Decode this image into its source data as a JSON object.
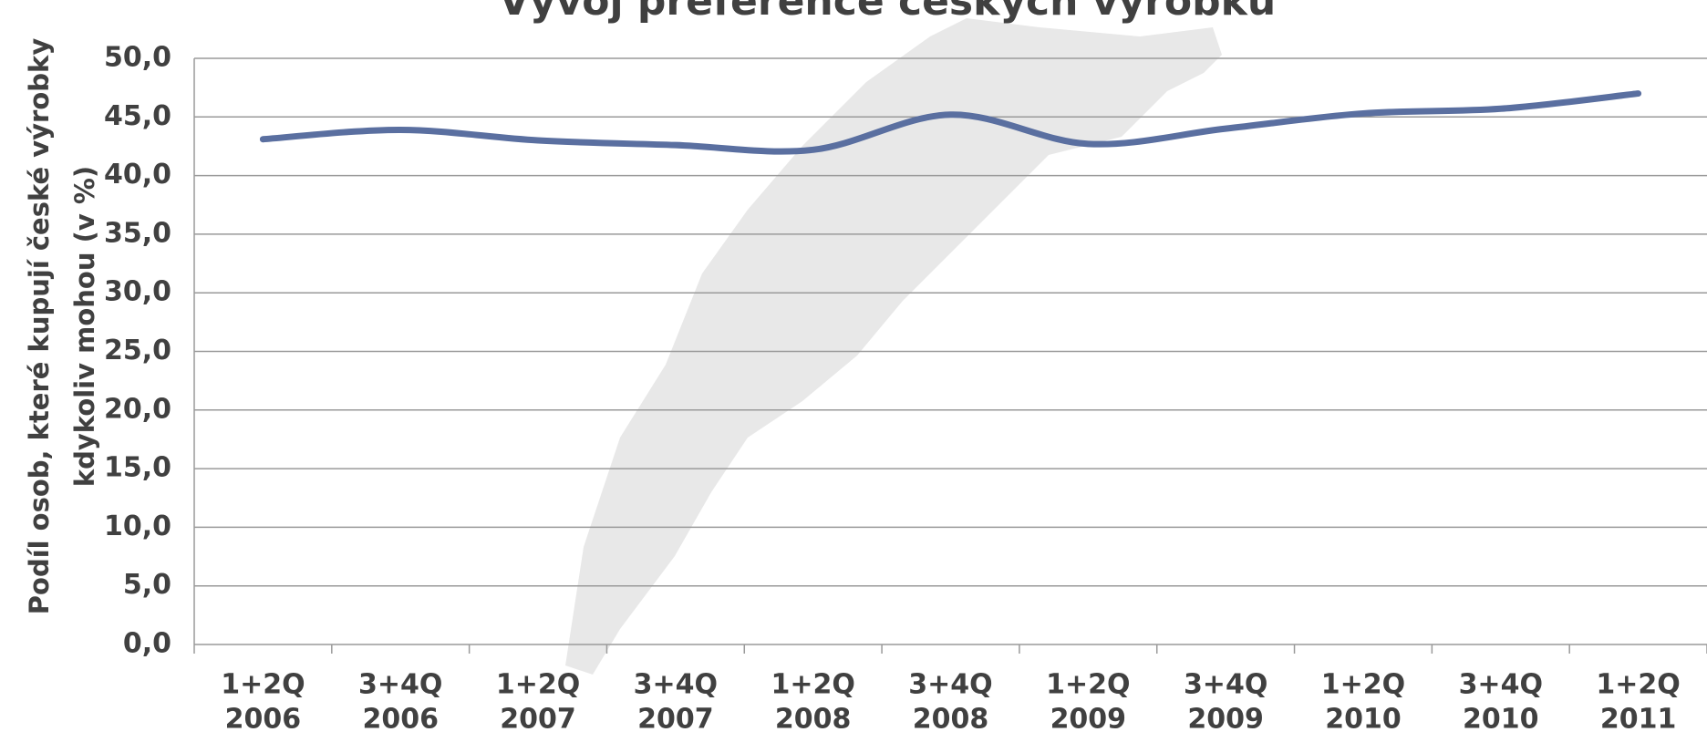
{
  "chart_data": {
    "type": "line",
    "title": "Vývoj preference českých výrobků",
    "y_label": [
      "Podíl osob, které kupují české výrobky",
      "kdykoliv mohou (v %)"
    ],
    "categories": [
      [
        "1+2Q",
        "2006"
      ],
      [
        "3+4Q",
        "2006"
      ],
      [
        "1+2Q",
        "2007"
      ],
      [
        "3+4Q",
        "2007"
      ],
      [
        "1+2Q",
        "2008"
      ],
      [
        "3+4Q",
        "2008"
      ],
      [
        "1+2Q",
        "2009"
      ],
      [
        "3+4Q",
        "2009"
      ],
      [
        "1+2Q",
        "2010"
      ],
      [
        "3+4Q",
        "2010"
      ],
      [
        "1+2Q",
        "2011"
      ]
    ],
    "series": [
      {
        "name": "Podíl osob",
        "color": "#5a6fa0",
        "values": [
          43.1,
          43.9,
          43.0,
          42.6,
          42.2,
          45.2,
          42.7,
          44.0,
          45.3,
          45.7,
          47.0
        ]
      }
    ],
    "ylim": [
      0,
      50
    ],
    "yticks": [
      {
        "value": 0,
        "label": "0,0"
      },
      {
        "value": 5,
        "label": "5,0"
      },
      {
        "value": 10,
        "label": "10,0"
      },
      {
        "value": 15,
        "label": "15,0"
      },
      {
        "value": 20,
        "label": "20,0"
      },
      {
        "value": 25,
        "label": "25,0"
      },
      {
        "value": 30,
        "label": "30,0"
      },
      {
        "value": 35,
        "label": "35,0"
      },
      {
        "value": 40,
        "label": "40,0"
      },
      {
        "value": 45,
        "label": "45,0"
      },
      {
        "value": 50,
        "label": "50,0"
      }
    ],
    "grid": true
  }
}
